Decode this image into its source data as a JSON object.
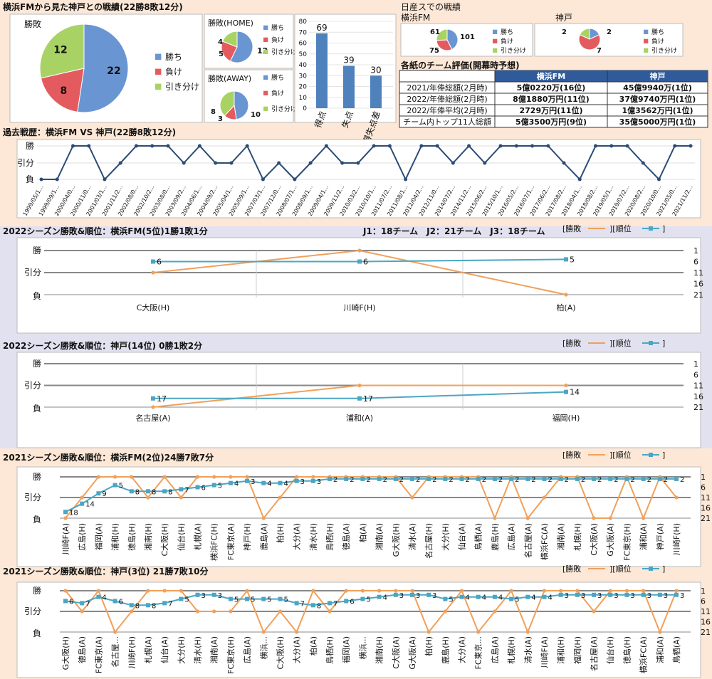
{
  "colors": {
    "win": "#6a95d3",
    "loss": "#e35b5f",
    "draw": "#a9d265",
    "line_wl": "#f1a05a",
    "line_rank": "#4ba6c3",
    "hist_line": "#2b4b74",
    "top_bg": "#fde8d7",
    "mid_bg": "#e2e1ef",
    "bar": "#4f81bd"
  },
  "legend": {
    "win": "勝ち",
    "loss": "負け",
    "draw": "引き分け",
    "wl": "[勝敗",
    "rank": "][順位",
    "close": "]"
  },
  "top": {
    "title": "横浜FMから見た神戸との戦績(22勝8敗12分)",
    "overall": {
      "label": "勝敗",
      "values": [
        22,
        8,
        12
      ]
    },
    "home": {
      "label": "勝敗(HOME)",
      "values": [
        12,
        5,
        4
      ]
    },
    "away": {
      "label": "勝敗(AWAY)",
      "values": [
        10,
        3,
        8
      ]
    },
    "goals": {
      "ticks": [
        0,
        10,
        20,
        30,
        40,
        50,
        60,
        70,
        80
      ],
      "categories": [
        "得点",
        "失点",
        "得失点差"
      ],
      "values": [
        69,
        39,
        30
      ]
    }
  },
  "nissan": {
    "title": "日産スでの戦績",
    "yfm": {
      "label": "横浜FM",
      "values": [
        101,
        75,
        61
      ]
    },
    "kobe": {
      "label": "神戸",
      "values": [
        2,
        7,
        2
      ]
    }
  },
  "eval": {
    "title": "各紙のチーム評価(開幕時予想)",
    "headers": [
      "",
      "横浜FM",
      "神戸"
    ],
    "rows": [
      [
        "2021/年俸総額(2月時)",
        "5億0220万(16位)",
        "45億9940万(1位)"
      ],
      [
        "2022/年俸総額(2月時)",
        "8億1880万円(11位)",
        "37億9740万円(1位)"
      ],
      [
        "2022/年俸平均(2月時)",
        "2729万円(11位)",
        "1億3562万円(1位)"
      ],
      [
        "チーム内トップ11人総額",
        "5億3500万円(9位)",
        "35億5000万円(1位)"
      ]
    ]
  },
  "history": {
    "title": "過去戦歴：横浜FM VS 神戸(22勝8敗12分)",
    "ylabels": [
      "勝",
      "引分",
      "負"
    ],
    "dates": [
      "1999/05/1...",
      "1999/09/1...",
      "2000/04/0...",
      "2000/11/0...",
      "2001/03/1...",
      "2001/11/2...",
      "2002/08/0...",
      "2002/10/2...",
      "2003/08/0...",
      "2003/09/2...",
      "2004/06/1...",
      "2004/09/2...",
      "2005/04/1...",
      "2005/09/1...",
      "2007/03/1...",
      "2007/12/0...",
      "2008/07/1...",
      "2008/09/1...",
      "2009/04/1...",
      "2009/11/2...",
      "2010/03/2...",
      "2010/10/1...",
      "2011/07/2...",
      "2011/08/1...",
      "2012/04/2...",
      "2012/11/0...",
      "2014/07/2...",
      "2014/11/2...",
      "2015/06/2...",
      "2015/10/1...",
      "2016/05/2...",
      "2016/07/1...",
      "2017/06/2...",
      "2017/08/2...",
      "2018/04/1...",
      "2018/08/2...",
      "2019/05/1...",
      "2019/07/2...",
      "2020/08/2...",
      "2020/10/0...",
      "2021/05/0...",
      "2021/11/2..."
    ],
    "results": [
      1,
      1,
      3,
      3,
      1,
      2,
      3,
      3,
      3,
      2,
      3,
      2,
      2,
      3,
      1,
      2,
      1,
      2,
      3,
      2,
      2,
      3,
      3,
      1,
      3,
      3,
      2,
      3,
      2,
      3,
      3,
      3,
      3,
      2,
      1,
      3,
      3,
      3,
      2,
      1,
      3,
      3
    ]
  },
  "charts": [
    {
      "title": "2022シーズン勝敗&順位：横浜FM(5位)1勝1敗1分",
      "note": "J1：18チーム　J2：21チーム　J3：18チーム",
      "categories": [
        "C大阪(H)",
        "川崎F(H)",
        "柏(A)"
      ],
      "wl": [
        2,
        3,
        1
      ],
      "rank": [
        6,
        6,
        5
      ],
      "rank_ticks": [
        1,
        6,
        11,
        16,
        21
      ],
      "ylabels": [
        "勝",
        "引分",
        "負"
      ]
    },
    {
      "title": "2022シーズン勝敗&順位：神戸(14位) 0勝1敗2分",
      "note": "",
      "categories": [
        "名古屋(A)",
        "浦和(A)",
        "福岡(H)"
      ],
      "wl": [
        1,
        2,
        2
      ],
      "rank": [
        17,
        17,
        14
      ],
      "rank_ticks": [
        1,
        6,
        11,
        16,
        21
      ],
      "ylabels": [
        "勝",
        "引分",
        "負"
      ]
    },
    {
      "title": "2021シーズン勝敗&順位：横浜FM(2位)24勝7敗7分",
      "note": "",
      "categories": [
        "川崎F(A)",
        "広島(H)",
        "福岡(A)",
        "浦和(H)",
        "徳島(H)",
        "湘南(H)",
        "C大阪(H)",
        "仙台(H)",
        "札幌(A)",
        "横浜FC(H)",
        "FC東京(A)",
        "神戸(H)",
        "鹿島(A)",
        "柏(H)",
        "大分(A)",
        "清水(H)",
        "鳥栖(H)",
        "徳島(A)",
        "柏(A)",
        "湘南(A)",
        "G大阪(H)",
        "清水(A)",
        "名古屋(H)",
        "大分(H)",
        "仙台(A)",
        "鳥栖(A)",
        "鹿島(H)",
        "広島(A)",
        "名古屋(A)",
        "横浜FC(A)",
        "湘南(A)",
        "札幌(H)",
        "C大阪(A)",
        "G大阪(A)",
        "FC東京(H)",
        "浦和(A)",
        "神戸(A)",
        "川崎F(H)"
      ],
      "wl": [
        1,
        2,
        3,
        3,
        3,
        2,
        3,
        2,
        3,
        3,
        3,
        3,
        1,
        2,
        3,
        3,
        3,
        3,
        3,
        3,
        3,
        2,
        3,
        3,
        3,
        3,
        1,
        3,
        1,
        2,
        3,
        3,
        1,
        1,
        3,
        1,
        3,
        2
      ],
      "rank": [
        18,
        14,
        9,
        5,
        8,
        8,
        8,
        7,
        6,
        5,
        4,
        3,
        4,
        4,
        3,
        3,
        2,
        2,
        2,
        2,
        2,
        2,
        2,
        2,
        2,
        2,
        2,
        2,
        2,
        2,
        2,
        2,
        2,
        2,
        2,
        2,
        2,
        2
      ],
      "rank_ticks": [
        1,
        6,
        11,
        16,
        21
      ],
      "ylabels": [
        "勝",
        "引分",
        "負"
      ]
    },
    {
      "title": "2021シーズン勝敗&順位：神戸(3位) 21勝7敗10分",
      "note": "",
      "categories": [
        "G大阪(H)",
        "徳島(A)",
        "FC東京(A)",
        "名古屋...",
        "川崎F(H)",
        "札幌(A)",
        "仙台(A)",
        "大分(H)",
        "清水(H)",
        "湘南(A)",
        "FC東京(H)",
        "広島(A)",
        "横浜...",
        "C大阪(H)",
        "大分(A)",
        "柏(A)",
        "鳥栖(H)",
        "福岡(A)",
        "横浜...",
        "湘南(H)",
        "C大阪(A)",
        "G大阪(A)",
        "柏(H)",
        "鹿島(H)",
        "大分(A)",
        "FC東京...",
        "広島(A)",
        "札幌(H)",
        "清水(A)",
        "川崎F(A)",
        "浦和(H)",
        "福岡(H)",
        "名古屋(A)",
        "仙台(H)",
        "徳島(H)",
        "横浜FC(A)",
        "浦和(A)",
        "鳥栖(A)"
      ],
      "wl": [
        3,
        2,
        3,
        1,
        2,
        3,
        3,
        3,
        2,
        2,
        2,
        3,
        1,
        2,
        1,
        3,
        2,
        3,
        3,
        3,
        3,
        3,
        1,
        2,
        3,
        1,
        2,
        3,
        1,
        3,
        3,
        3,
        2,
        3,
        3,
        3,
        1,
        3
      ],
      "rank": [
        6,
        7,
        4,
        6,
        8,
        8,
        7,
        5,
        3,
        3,
        5,
        5,
        5,
        5,
        7,
        8,
        7,
        6,
        5,
        4,
        3,
        3,
        3,
        5,
        4,
        4,
        4,
        5,
        4,
        4,
        3,
        3,
        3,
        3,
        3,
        3,
        3,
        3
      ],
      "rank_ticks": [
        1,
        6,
        11,
        16,
        21
      ],
      "ylabels": [
        "勝",
        "引分",
        "負"
      ]
    }
  ]
}
